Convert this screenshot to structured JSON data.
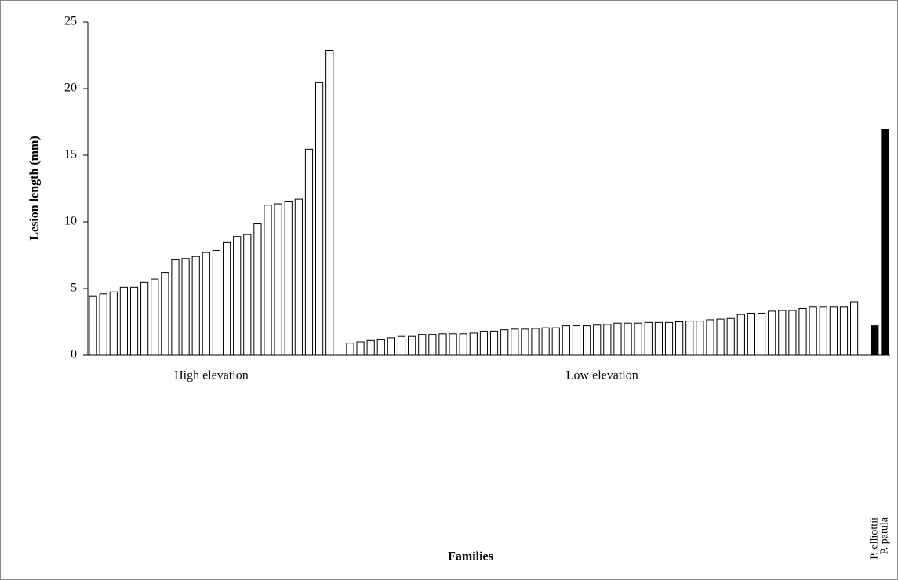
{
  "chart_data": {
    "type": "bar",
    "y_label": "Lesion length (mm)",
    "x_label": "Families",
    "ylim": [
      0,
      25
    ],
    "yticks": [
      0,
      5,
      10,
      15,
      20,
      25
    ],
    "grid": false,
    "groups": [
      {
        "label": "High elevation",
        "color": "#ffffff",
        "values": [
          4.4,
          4.6,
          4.75,
          5.1,
          5.1,
          5.45,
          5.7,
          6.2,
          7.15,
          7.25,
          7.4,
          7.7,
          7.85,
          8.45,
          8.9,
          9.05,
          9.85,
          11.25,
          11.35,
          11.5,
          11.7,
          15.45,
          20.45,
          22.85
        ]
      },
      {
        "label": "Low elevation",
        "color": "#ffffff",
        "values": [
          0.9,
          1.0,
          1.1,
          1.15,
          1.3,
          1.4,
          1.4,
          1.55,
          1.55,
          1.6,
          1.6,
          1.6,
          1.65,
          1.8,
          1.8,
          1.9,
          1.95,
          1.95,
          2.0,
          2.05,
          2.05,
          2.2,
          2.2,
          2.2,
          2.25,
          2.3,
          2.4,
          2.4,
          2.4,
          2.45,
          2.45,
          2.45,
          2.5,
          2.55,
          2.55,
          2.65,
          2.7,
          2.75,
          3.05,
          3.15,
          3.15,
          3.3,
          3.35,
          3.35,
          3.5,
          3.6,
          3.6,
          3.6,
          3.6,
          4.0
        ]
      },
      {
        "categories": [
          "P. elliottii",
          "P. patula"
        ],
        "color": "#000000",
        "values": [
          2.2,
          16.95
        ]
      }
    ]
  }
}
